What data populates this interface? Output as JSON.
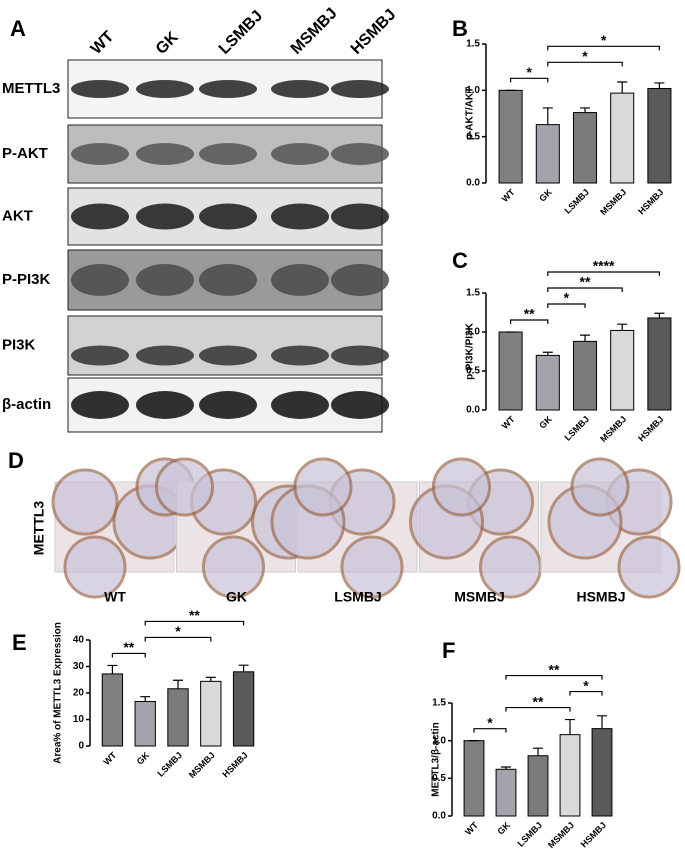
{
  "blot": {
    "panel": "A",
    "lanes": [
      "WT",
      "GK",
      "LSMBJ",
      "MSMBJ",
      "HSMBJ"
    ],
    "rows": [
      "METTL3",
      "P-AKT",
      "AKT",
      "P-PI3K",
      "PI3K",
      "β-actin"
    ]
  },
  "histology": {
    "panel": "D",
    "stain": "METTL3",
    "groups": [
      "WT",
      "GK",
      "LSMBJ",
      "MSMBJ",
      "HSMBJ"
    ]
  },
  "chart_data": [
    {
      "type": "bar",
      "panel": "B",
      "ylabel": "p-AKT/AKT",
      "categories": [
        "WT",
        "GK",
        "LSMBJ",
        "MSMBJ",
        "HSMBJ"
      ],
      "values": [
        1.0,
        0.63,
        0.76,
        0.97,
        1.02
      ],
      "errors": [
        0,
        0.18,
        0.05,
        0.12,
        0.06
      ],
      "colors": [
        "#808080",
        "#a3a3ab",
        "#7b7b7b",
        "#d9d9d9",
        "#5a5a5a"
      ],
      "ylim": [
        0,
        1.5
      ],
      "yticks": [
        {
          "value": 0,
          "label": "0.0"
        },
        {
          "value": 0.5,
          "label": "0.5"
        },
        {
          "value": 1,
          "label": "1.0"
        },
        {
          "value": 1.5,
          "label": "1.5"
        }
      ],
      "annotations": [
        {
          "label": "*",
          "between": [
            "WT",
            "GK"
          ]
        },
        {
          "label": "*",
          "between": [
            "GK",
            "MSMBJ"
          ]
        },
        {
          "label": "*",
          "between": [
            "GK",
            "HSMBJ"
          ]
        }
      ]
    },
    {
      "type": "bar",
      "panel": "C",
      "ylabel": "p-PI3K/PI3K",
      "categories": [
        "WT",
        "GK",
        "LSMBJ",
        "MSMBJ",
        "HSMBJ"
      ],
      "values": [
        1.0,
        0.7,
        0.88,
        1.02,
        1.18
      ],
      "errors": [
        0,
        0.04,
        0.08,
        0.08,
        0.06
      ],
      "colors": [
        "#808080",
        "#a3a3ab",
        "#7b7b7b",
        "#d9d9d9",
        "#5a5a5a"
      ],
      "ylim": [
        0,
        1.5
      ],
      "yticks": [
        {
          "value": 0,
          "label": "0.0"
        },
        {
          "value": 0.5,
          "label": "0.5"
        },
        {
          "value": 1,
          "label": "1.0"
        },
        {
          "value": 1.5,
          "label": "1.5"
        }
      ],
      "annotations": [
        {
          "label": "**",
          "between": [
            "WT",
            "GK"
          ]
        },
        {
          "label": "*",
          "between": [
            "GK",
            "LSMBJ"
          ]
        },
        {
          "label": "**",
          "between": [
            "GK",
            "MSMBJ"
          ]
        },
        {
          "label": "****",
          "between": [
            "GK",
            "HSMBJ"
          ]
        }
      ]
    },
    {
      "type": "bar",
      "panel": "E",
      "ylabel": "Area% of METTL3 Expression",
      "categories": [
        "WT",
        "GK",
        "LSMBJ",
        "MSMBJ",
        "HSMBJ"
      ],
      "values": [
        27.2,
        16.8,
        21.6,
        24.4,
        28.0
      ],
      "errors": [
        3.2,
        1.8,
        3.2,
        1.5,
        2.5
      ],
      "colors": [
        "#808080",
        "#a3a3ab",
        "#7b7b7b",
        "#d9d9d9",
        "#5a5a5a"
      ],
      "ylim": [
        0,
        40
      ],
      "yticks": [
        0,
        10,
        20,
        30,
        40
      ],
      "annotations": [
        {
          "label": "**",
          "between": [
            "WT",
            "GK"
          ]
        },
        {
          "label": "*",
          "between": [
            "GK",
            "MSMBJ"
          ]
        },
        {
          "label": "**",
          "between": [
            "GK",
            "HSMBJ"
          ]
        }
      ]
    },
    {
      "type": "bar",
      "panel": "F",
      "ylabel": "METTL3/β-actin",
      "categories": [
        "WT",
        "GK",
        "LSMBJ",
        "MSMBJ",
        "HSMBJ"
      ],
      "values": [
        1.0,
        0.62,
        0.8,
        1.08,
        1.16
      ],
      "errors": [
        0,
        0.03,
        0.1,
        0.2,
        0.17
      ],
      "colors": [
        "#808080",
        "#a3a3ab",
        "#7b7b7b",
        "#d9d9d9",
        "#5a5a5a"
      ],
      "ylim": [
        0,
        1.5
      ],
      "yticks": [
        {
          "value": 0,
          "label": "0.0"
        },
        {
          "value": 0.5,
          "label": "0.5"
        },
        {
          "value": 1,
          "label": "1.0"
        },
        {
          "value": 1.5,
          "label": "1.5"
        }
      ],
      "annotations": [
        {
          "label": "*",
          "between": [
            "WT",
            "GK"
          ]
        },
        {
          "label": "**",
          "between": [
            "GK",
            "MSMBJ"
          ]
        },
        {
          "label": "*",
          "between": [
            "MSMBJ",
            "HSMBJ"
          ]
        },
        {
          "label": "**",
          "between": [
            "GK",
            "HSMBJ"
          ]
        }
      ]
    }
  ]
}
